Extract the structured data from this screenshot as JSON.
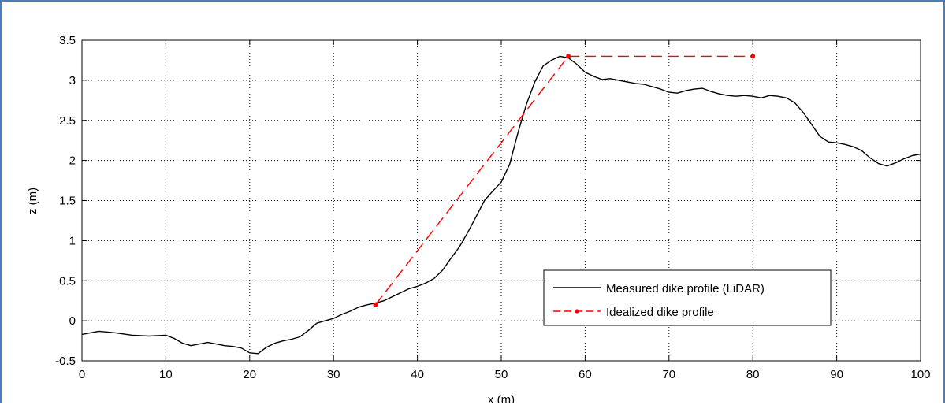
{
  "chart_data": {
    "type": "line",
    "title": "",
    "xlabel": "x (m)",
    "ylabel": "z (m)",
    "xlim": [
      0,
      100
    ],
    "ylim": [
      -0.5,
      3.5
    ],
    "xticks": [
      0,
      10,
      20,
      30,
      40,
      50,
      60,
      70,
      80,
      90,
      100
    ],
    "yticks": [
      -0.5,
      0,
      0.5,
      1,
      1.5,
      2,
      2.5,
      3,
      3.5
    ],
    "xtick_labels": [
      "0",
      "10",
      "20",
      "30",
      "40",
      "50",
      "60",
      "70",
      "80",
      "90",
      "100"
    ],
    "ytick_labels": [
      "-0.5",
      "0",
      "0.5",
      "1",
      "1.5",
      "2",
      "2.5",
      "3",
      "3.5"
    ],
    "grid": true,
    "legend_position": "bottom-right",
    "series": [
      {
        "name": "Measured dike profile (LiDAR)",
        "color": "#000000",
        "style": "solid",
        "x": [
          0,
          2,
          4,
          6,
          8,
          10,
          11,
          12,
          13,
          14,
          15,
          16,
          17,
          18,
          19,
          20,
          21,
          22,
          23,
          24,
          25,
          26,
          27,
          28,
          29,
          30,
          31,
          32,
          33,
          34,
          35,
          36,
          37,
          38,
          39,
          40,
          41,
          42,
          43,
          44,
          45,
          46,
          47,
          48,
          49,
          50,
          51,
          52,
          53,
          54,
          55,
          56,
          57,
          58,
          59,
          60,
          61,
          62,
          63,
          64,
          65,
          66,
          67,
          68,
          69,
          70,
          71,
          72,
          73,
          74,
          75,
          76,
          77,
          78,
          79,
          80,
          81,
          82,
          83,
          84,
          85,
          86,
          87,
          88,
          89,
          90,
          91,
          92,
          93,
          94,
          95,
          96,
          97,
          98,
          99,
          100
        ],
        "y": [
          -0.17,
          -0.13,
          -0.15,
          -0.18,
          -0.19,
          -0.18,
          -0.22,
          -0.28,
          -0.31,
          -0.29,
          -0.27,
          -0.29,
          -0.31,
          -0.32,
          -0.34,
          -0.4,
          -0.41,
          -0.33,
          -0.28,
          -0.25,
          -0.23,
          -0.2,
          -0.12,
          -0.03,
          0.0,
          0.03,
          0.08,
          0.12,
          0.17,
          0.2,
          0.22,
          0.25,
          0.3,
          0.35,
          0.4,
          0.43,
          0.47,
          0.53,
          0.63,
          0.78,
          0.92,
          1.1,
          1.3,
          1.5,
          1.62,
          1.73,
          1.95,
          2.35,
          2.7,
          2.98,
          3.18,
          3.25,
          3.3,
          3.28,
          3.2,
          3.1,
          3.05,
          3.01,
          3.02,
          3.0,
          2.98,
          2.96,
          2.95,
          2.92,
          2.89,
          2.85,
          2.84,
          2.87,
          2.89,
          2.9,
          2.86,
          2.83,
          2.81,
          2.8,
          2.81,
          2.8,
          2.78,
          2.81,
          2.8,
          2.78,
          2.72,
          2.6,
          2.45,
          2.3,
          2.23,
          2.22,
          2.2,
          2.17,
          2.12,
          2.03,
          1.96,
          1.93,
          1.97,
          2.02,
          2.06,
          2.08
        ]
      },
      {
        "name": "Idealized dike profile",
        "color": "#ff0000",
        "style": "dashed",
        "markers": true,
        "x": [
          35,
          58,
          80
        ],
        "y": [
          0.2,
          3.3,
          3.3
        ]
      }
    ]
  }
}
